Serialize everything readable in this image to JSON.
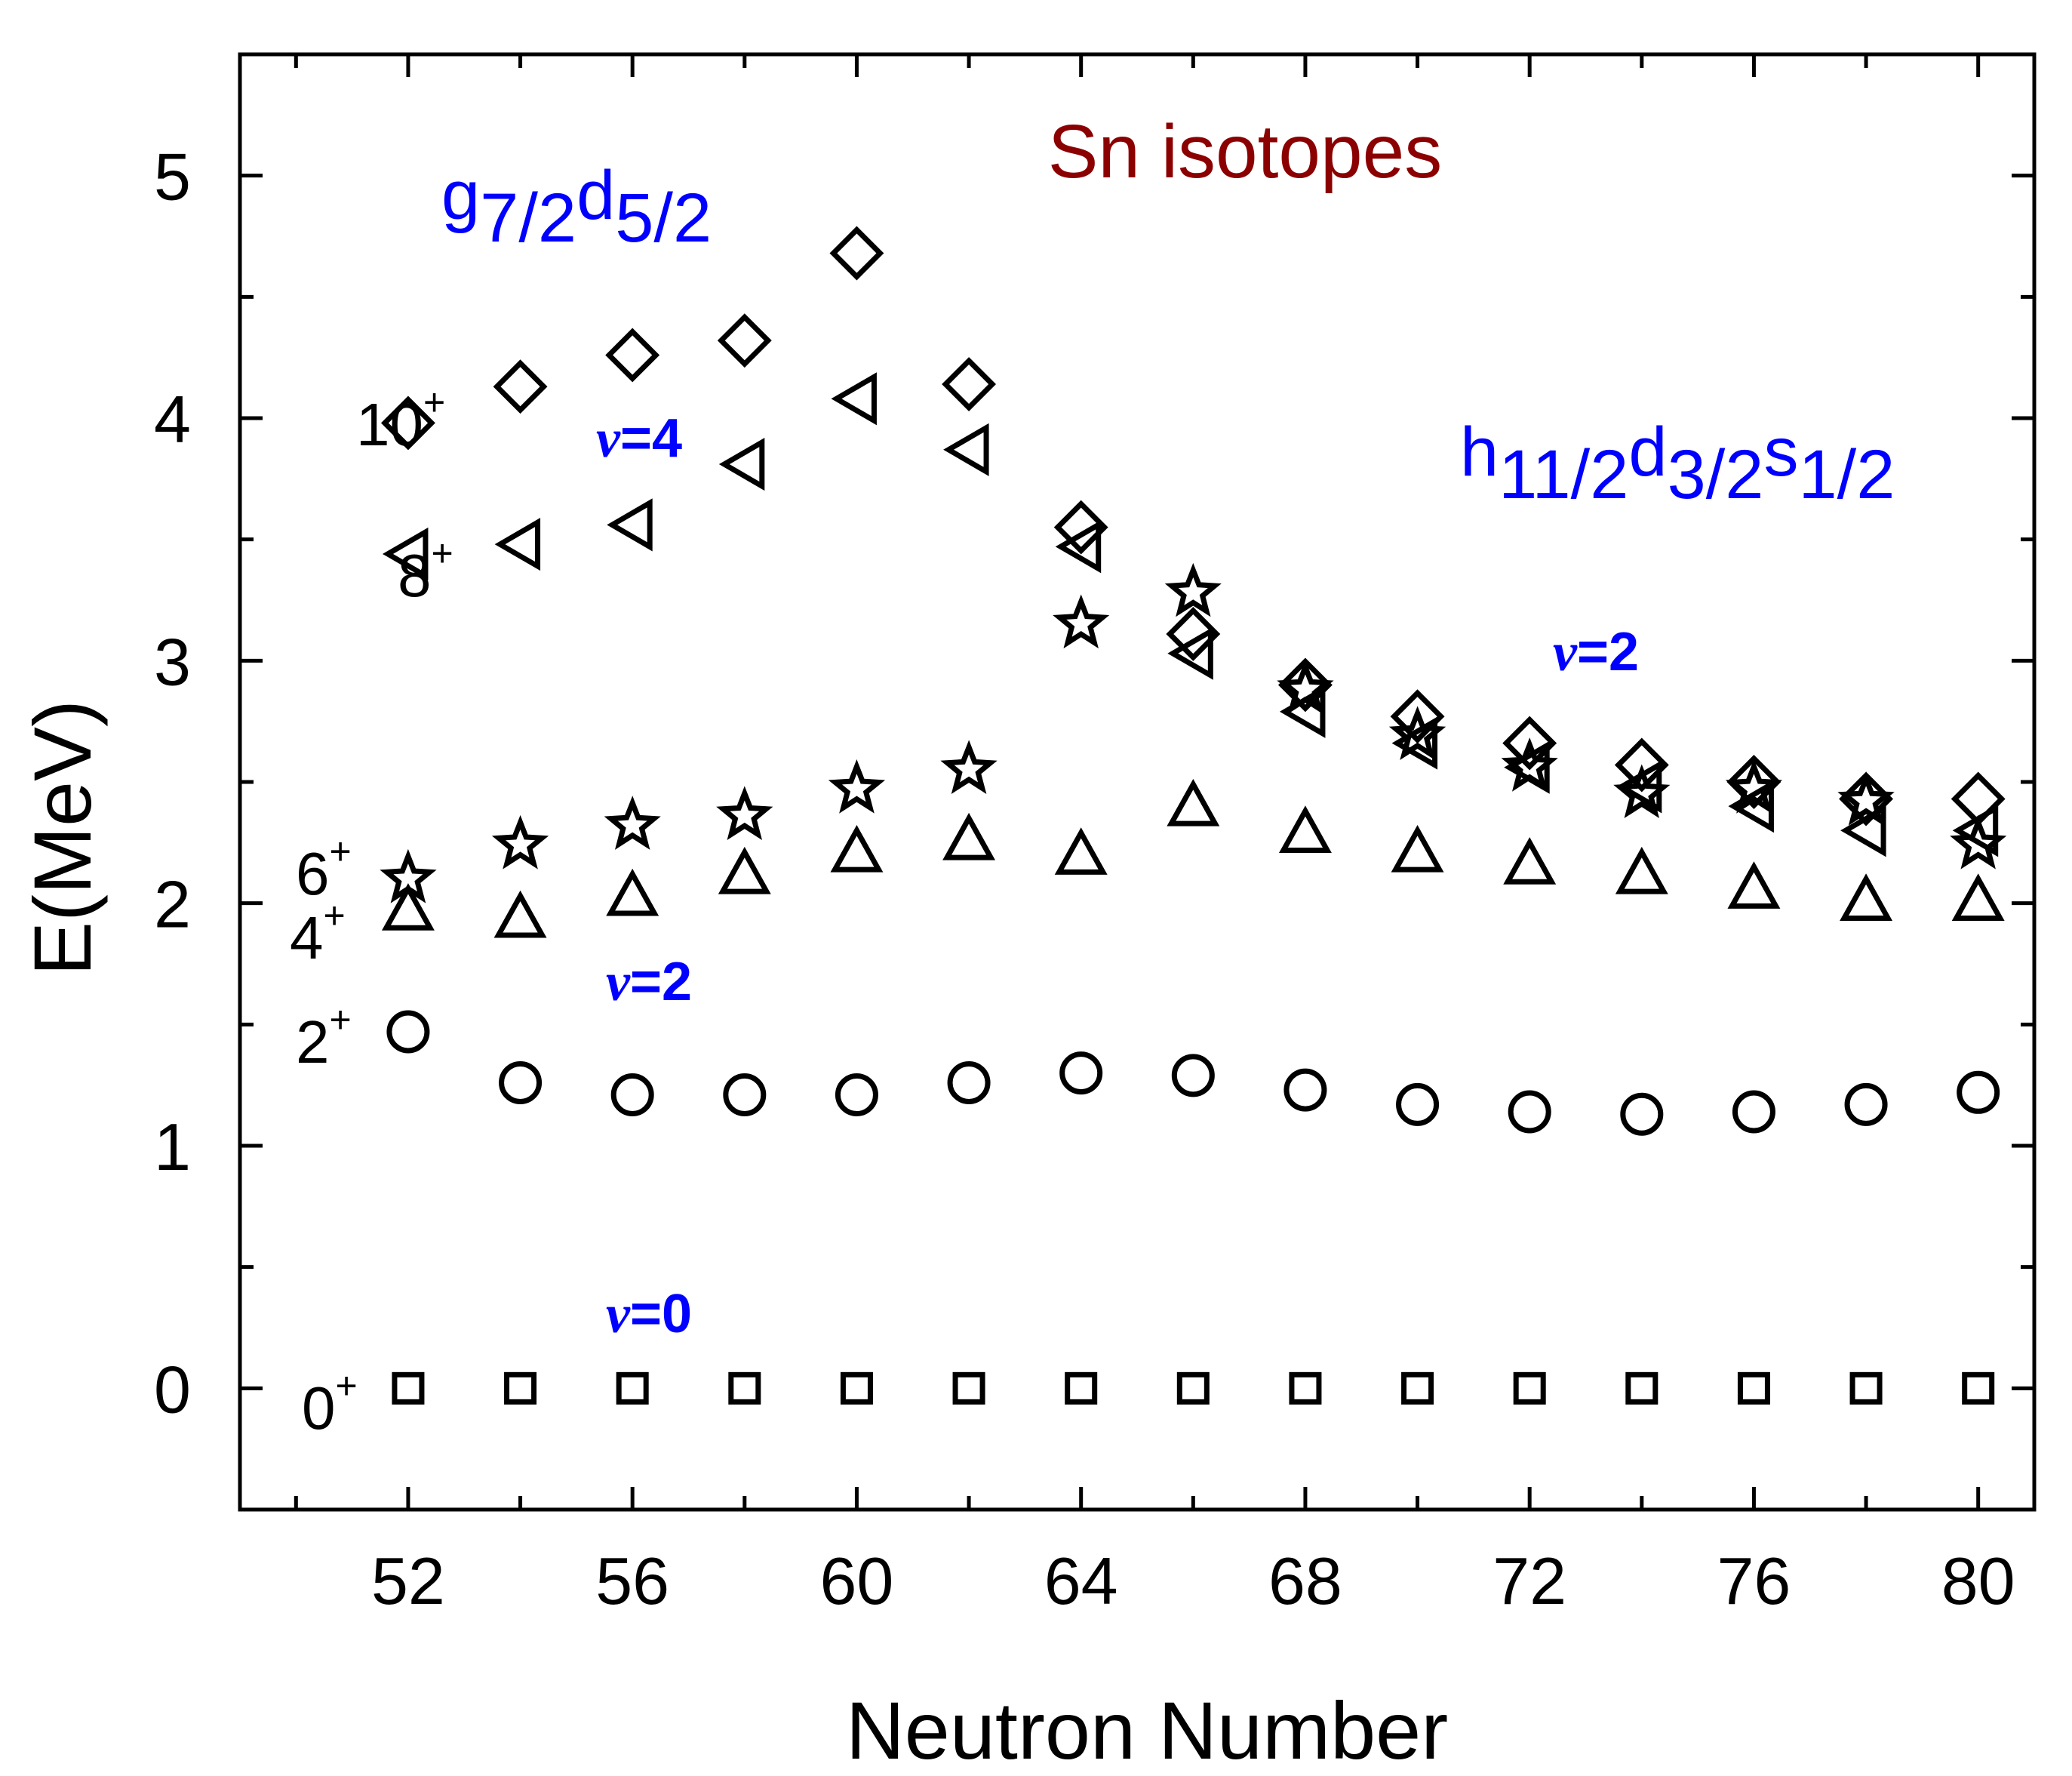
{
  "chart_data": {
    "type": "scatter",
    "title": "Sn isotopes",
    "xlabel": "Neutron Number",
    "ylabel": "E(MeV)",
    "xlim": [
      49.0,
      81.0
    ],
    "ylim": [
      -0.5,
      5.5
    ],
    "xticks": [
      52,
      56,
      60,
      64,
      68,
      72,
      76,
      80
    ],
    "yticks": [
      0,
      1,
      2,
      3,
      4,
      5
    ],
    "colors": {
      "axis": "#000000",
      "title": "#8b0000",
      "orbital": "#0000ff",
      "marker": "#000000"
    },
    "series": [
      {
        "name": "0+",
        "label_main": "0",
        "label_sup": "+",
        "marker": "square",
        "x": [
          52,
          54,
          56,
          58,
          60,
          62,
          64,
          66,
          68,
          70,
          72,
          74,
          76,
          78,
          80
        ],
        "y": [
          0,
          0,
          0,
          0,
          0,
          0,
          0,
          0,
          0,
          0,
          0,
          0,
          0,
          0,
          0
        ]
      },
      {
        "name": "2+",
        "label_main": "2",
        "label_sup": "+",
        "marker": "circle",
        "x": [
          52,
          54,
          56,
          58,
          60,
          62,
          64,
          66,
          68,
          70,
          72,
          74,
          76,
          78,
          80
        ],
        "y": [
          1.47,
          1.26,
          1.21,
          1.21,
          1.21,
          1.26,
          1.3,
          1.29,
          1.23,
          1.17,
          1.14,
          1.13,
          1.14,
          1.17,
          1.22
        ]
      },
      {
        "name": "4+",
        "label_main": "4",
        "label_sup": "+",
        "marker": "triangle-up",
        "x": [
          52,
          54,
          56,
          58,
          60,
          62,
          64,
          66,
          68,
          70,
          72,
          74,
          76,
          78,
          80
        ],
        "y": [
          1.97,
          1.94,
          2.03,
          2.12,
          2.21,
          2.26,
          2.2,
          2.4,
          2.29,
          2.21,
          2.16,
          2.12,
          2.06,
          2.01,
          2.01
        ]
      },
      {
        "name": "6+",
        "label_main": "6",
        "label_sup": "+",
        "marker": "star",
        "x": [
          52,
          54,
          56,
          58,
          60,
          62,
          64,
          66,
          68,
          70,
          72,
          74,
          76,
          78,
          80
        ],
        "y": [
          2.1,
          2.24,
          2.32,
          2.36,
          2.47,
          2.55,
          3.15,
          3.28,
          2.88,
          2.69,
          2.56,
          2.45,
          2.47,
          2.42,
          2.24
        ]
      },
      {
        "name": "8+",
        "label_main": "8",
        "label_sup": "+",
        "marker": "triangle-left",
        "x": [
          52,
          54,
          56,
          58,
          60,
          62,
          64,
          66,
          68,
          70,
          72,
          74,
          76,
          78,
          80
        ],
        "y": [
          3.44,
          3.48,
          3.56,
          3.81,
          4.08,
          3.87,
          3.47,
          3.03,
          2.79,
          2.66,
          2.56,
          2.48,
          2.4,
          2.3,
          2.3
        ]
      },
      {
        "name": "10+",
        "label_main": "10",
        "label_sup": "+",
        "marker": "diamond",
        "x": [
          52,
          54,
          56,
          58,
          60,
          62,
          64,
          66,
          68,
          70,
          72,
          74,
          76,
          78,
          80
        ],
        "y": [
          3.98,
          4.13,
          4.26,
          4.32,
          4.68,
          4.14,
          3.55,
          3.11,
          2.9,
          2.77,
          2.66,
          2.57,
          2.5,
          2.43,
          2.43
        ]
      }
    ],
    "annotations": {
      "orbital_left": {
        "main": "g",
        "s1": "7/2",
        "mid": "d",
        "s2": "5/2"
      },
      "orbital_right": {
        "main": "h",
        "s1": "11/2",
        "mid": "d",
        "s2": "3/2",
        "mid2": "s",
        "s3": "1/2"
      },
      "seniority": [
        {
          "id": "v0",
          "symbol": "v",
          "value": "=0"
        },
        {
          "id": "v2_low",
          "symbol": "v",
          "value": "=2"
        },
        {
          "id": "v4",
          "symbol": "v",
          "value": "=4"
        },
        {
          "id": "v2_high",
          "symbol": "v",
          "value": "=2"
        }
      ]
    }
  }
}
